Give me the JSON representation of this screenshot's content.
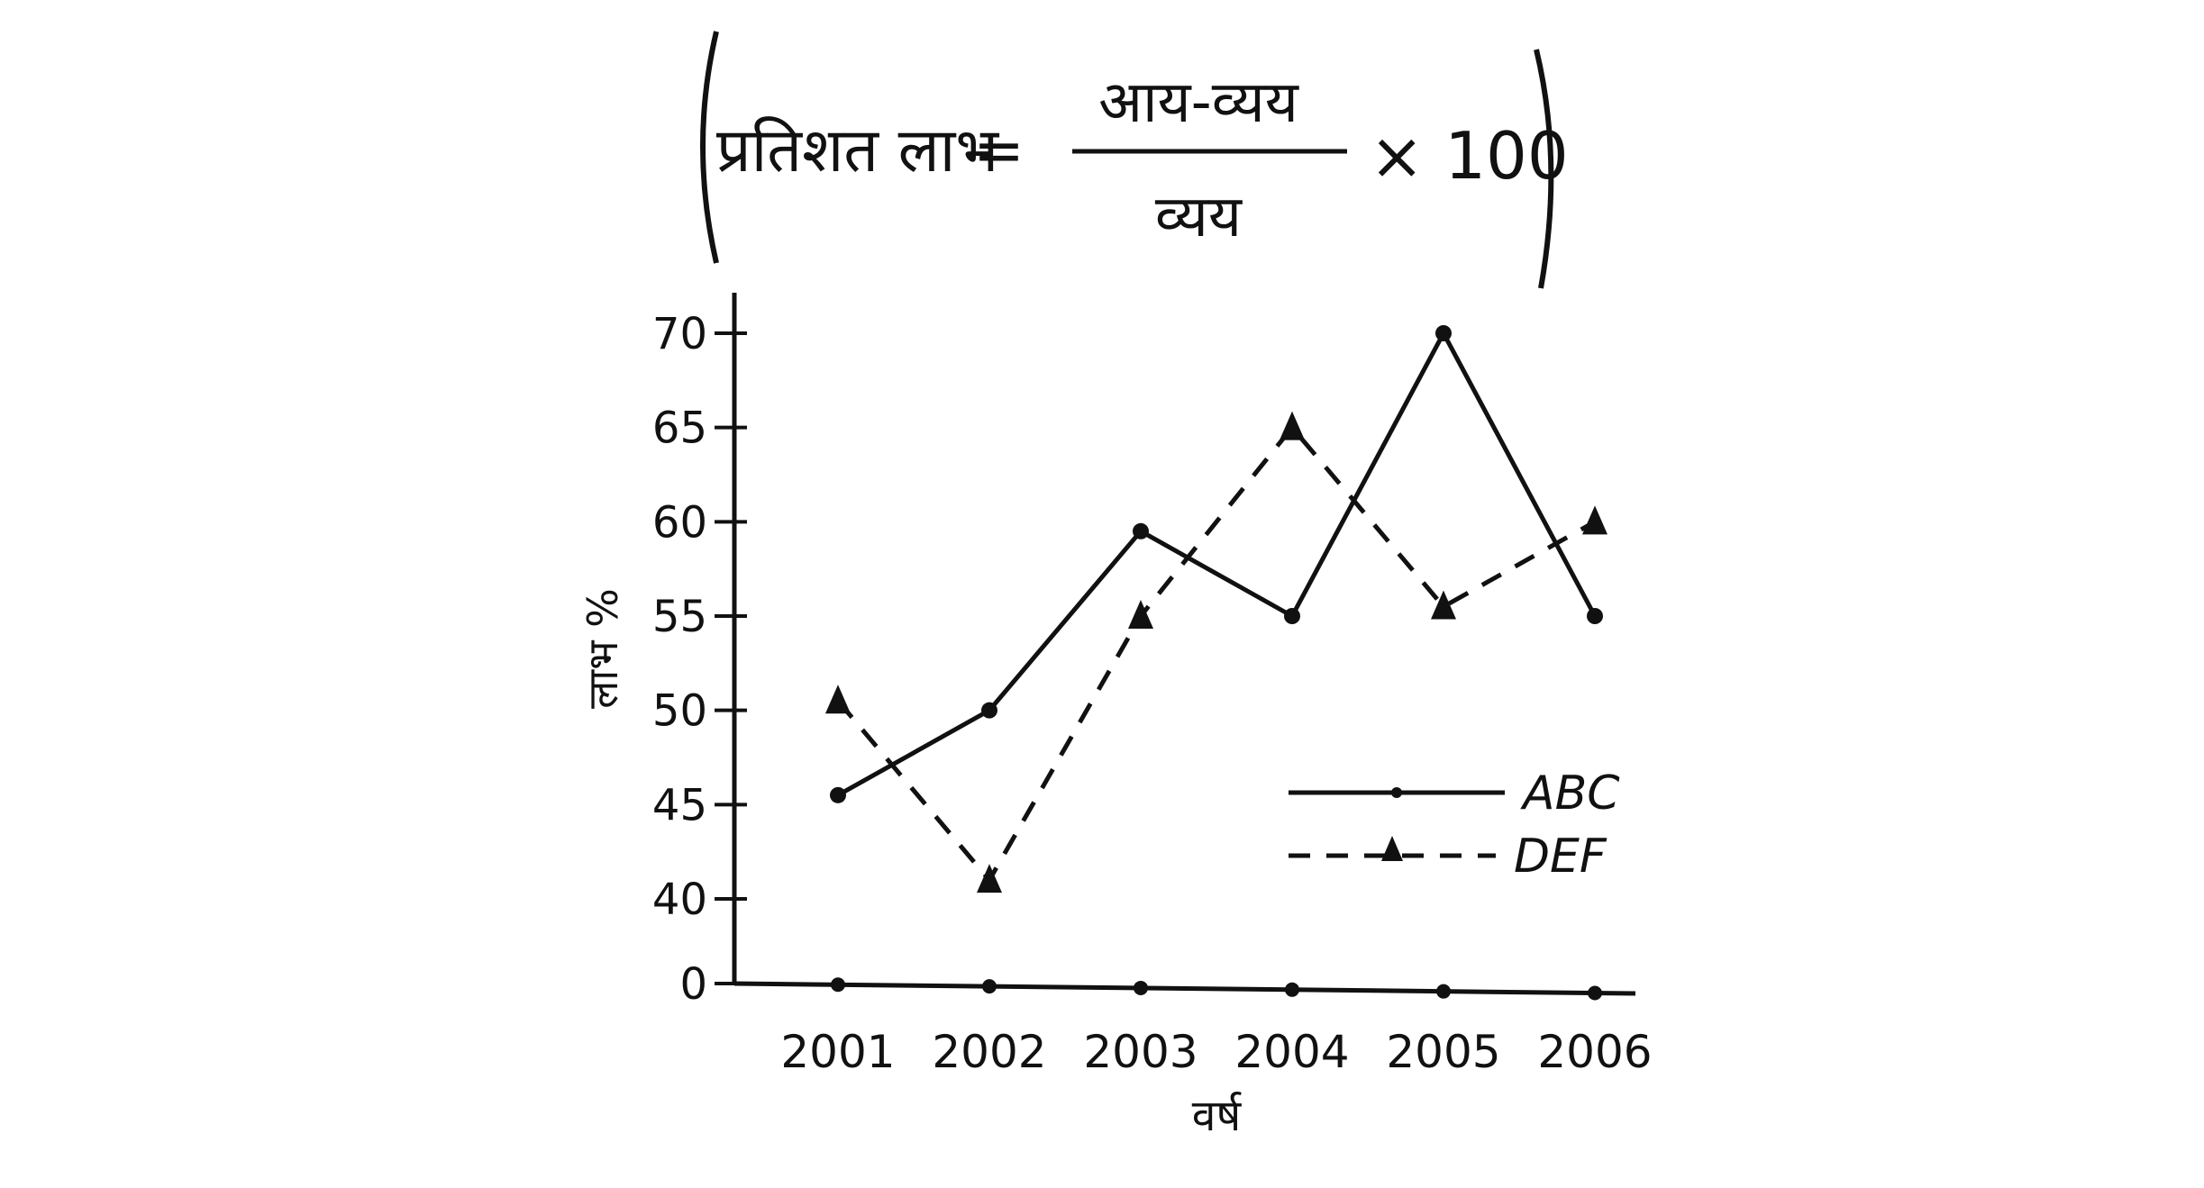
{
  "formula": {
    "lhs": "प्रतिशत लाभ",
    "equals": "=",
    "numerator": "आय-व्यय",
    "denominator": "व्यय",
    "multiplier": "× 100"
  },
  "chart_data": {
    "type": "line",
    "xlabel": "वर्ष",
    "ylabel": "लाभ %",
    "categories": [
      "2001",
      "2002",
      "2003",
      "2004",
      "2005",
      "2006"
    ],
    "y_ticks": [
      0,
      40,
      45,
      50,
      55,
      60,
      65,
      70
    ],
    "y_axis_break": true,
    "ylim": [
      40,
      70
    ],
    "grid": false,
    "legend_position": "right",
    "series": [
      {
        "name": "ABC",
        "style": "solid",
        "marker": "circle",
        "values": [
          45.5,
          50,
          59.5,
          55,
          70,
          55
        ]
      },
      {
        "name": "DEF",
        "style": "dashed",
        "marker": "triangle",
        "values": [
          50.5,
          41,
          55,
          65,
          55.5,
          60
        ]
      }
    ]
  },
  "colors": {
    "ink": "#111111",
    "background": "#ffffff"
  }
}
